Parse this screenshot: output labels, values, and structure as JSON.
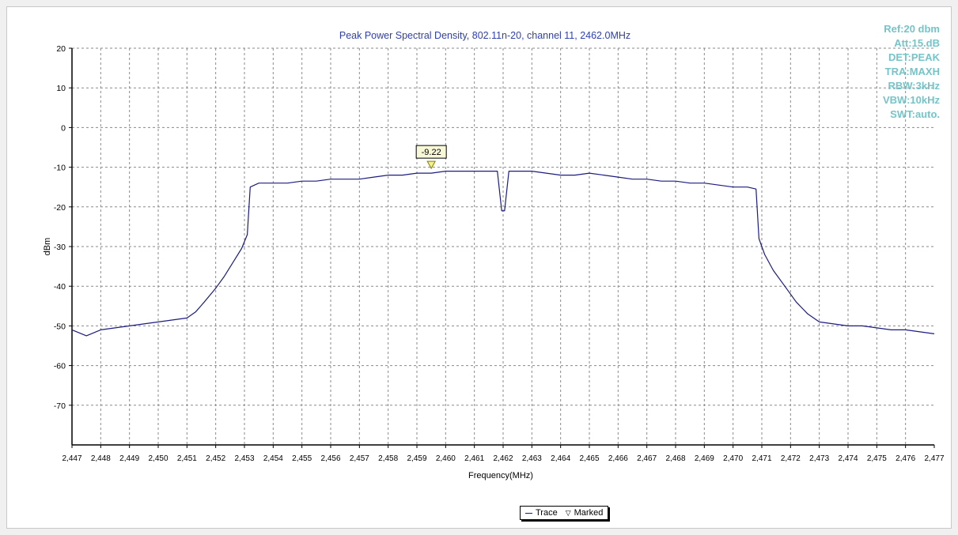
{
  "colors": {
    "trace": "#1c1c80",
    "title": "#3040b0",
    "info": "#74c4c8",
    "grid": "#8a8a8a",
    "marker_fill": "#f4f08c"
  },
  "info_lines": [
    "Ref:20 dbm",
    "Att:15.dB",
    "DET:PEAK",
    "TRA:MAXH",
    "RBW:3kHz",
    "VBW:10kHz",
    "SWT:auto."
  ],
  "legend": {
    "trace_label": "Trace",
    "marked_label": "Marked"
  },
  "chart_data": {
    "type": "line",
    "title": "Peak Power Spectral Density, 802.11n-20, channel 11, 2462.0MHz",
    "xlabel": "Frequency(MHz)",
    "ylabel": "dBm",
    "xlim": [
      2447,
      2477
    ],
    "ylim": [
      -80,
      20
    ],
    "x_ticks": [
      "2,447",
      "2,448",
      "2,449",
      "2,450",
      "2,451",
      "2,452",
      "2,453",
      "2,454",
      "2,455",
      "2,456",
      "2,457",
      "2,458",
      "2,459",
      "2,460",
      "2,461",
      "2,462",
      "2,463",
      "2,464",
      "2,465",
      "2,466",
      "2,467",
      "2,468",
      "2,469",
      "2,470",
      "2,471",
      "2,472",
      "2,473",
      "2,474",
      "2,475",
      "2,476",
      "2,477"
    ],
    "y_ticks": [
      20,
      10,
      0,
      -10,
      -20,
      -30,
      -40,
      -50,
      -60,
      -70
    ],
    "grid": true,
    "series": [
      {
        "name": "Trace",
        "x": [
          2447.0,
          2447.5,
          2448.0,
          2448.5,
          2449.0,
          2449.5,
          2450.0,
          2450.5,
          2451.0,
          2451.3,
          2451.6,
          2452.0,
          2452.3,
          2452.6,
          2452.9,
          2453.1,
          2453.2,
          2453.5,
          2454.0,
          2454.5,
          2455.0,
          2455.5,
          2456.0,
          2456.5,
          2457.0,
          2457.5,
          2458.0,
          2458.5,
          2459.0,
          2459.5,
          2460.0,
          2460.5,
          2461.0,
          2461.5,
          2461.8,
          2461.95,
          2462.05,
          2462.2,
          2462.5,
          2463.0,
          2463.5,
          2464.0,
          2464.5,
          2465.0,
          2465.5,
          2466.0,
          2466.5,
          2467.0,
          2467.5,
          2468.0,
          2468.5,
          2469.0,
          2469.5,
          2470.0,
          2470.5,
          2470.8,
          2470.9,
          2471.1,
          2471.4,
          2471.8,
          2472.2,
          2472.6,
          2473.0,
          2473.5,
          2474.0,
          2474.5,
          2475.0,
          2475.5,
          2476.0,
          2476.5,
          2477.0
        ],
        "y": [
          -51,
          -52.5,
          -51,
          -50.5,
          -50,
          -49.5,
          -49,
          -48.5,
          -48,
          -46.5,
          -44,
          -40.5,
          -37.5,
          -34,
          -30.5,
          -27,
          -15,
          -14,
          -14,
          -14,
          -13.5,
          -13.5,
          -13,
          -13,
          -13,
          -12.5,
          -12,
          -12,
          -11.5,
          -11.5,
          -11,
          -11,
          -11,
          -11,
          -11,
          -21,
          -21,
          -11,
          -11,
          -11,
          -11.5,
          -12,
          -12,
          -11.5,
          -12,
          -12.5,
          -13,
          -13,
          -13.5,
          -13.5,
          -14,
          -14,
          -14.5,
          -15,
          -15,
          -15.5,
          -28,
          -32,
          -36,
          -40,
          -44,
          -47,
          -49,
          -49.5,
          -50,
          -50,
          -50.5,
          -51,
          -51,
          -51.5,
          -52
        ]
      }
    ],
    "marker": {
      "x": 2459.5,
      "value": "-9.22"
    }
  }
}
